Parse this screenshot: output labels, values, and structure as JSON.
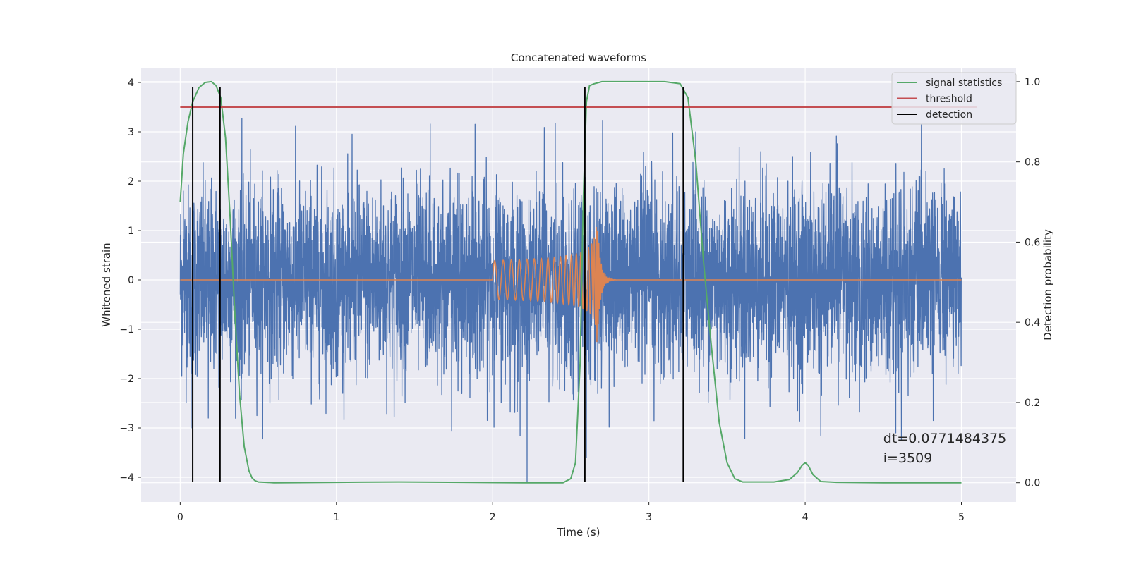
{
  "chart_data": {
    "type": "line",
    "title": "Concatenated waveforms",
    "xlabel": "Time (s)",
    "ylabel": "Whitened strain",
    "y2label": "Detection probability",
    "xlim": [
      -0.25,
      5.35
    ],
    "ylim": [
      -4.5,
      4.3
    ],
    "y2lim": [
      -0.048,
      1.035
    ],
    "xticks": [
      0,
      1,
      2,
      3,
      4,
      5
    ],
    "yticks": [
      -4,
      -3,
      -2,
      -1,
      0,
      1,
      2,
      3,
      4
    ],
    "y2ticks": [
      0.0,
      0.2,
      0.4,
      0.6,
      0.8,
      1.0
    ],
    "grid": true,
    "legend_position": "top-right",
    "legend": [
      "signal statistics",
      "threshold",
      "detection"
    ],
    "series": [
      {
        "name": "",
        "axis": "left",
        "color": "#4c72b0",
        "kind": "noise",
        "x_range": [
          0,
          5
        ],
        "typical_amplitude": 1.0,
        "spikes": [
          [
            0.02,
            1.8
          ],
          [
            0.07,
            -3.0
          ],
          [
            0.18,
            -2.8
          ],
          [
            0.25,
            -3.2
          ],
          [
            1.1,
            3.75
          ],
          [
            1.6,
            3.9
          ],
          [
            2.22,
            -4.1
          ],
          [
            2.6,
            -3.6
          ],
          [
            3.3,
            3.5
          ],
          [
            4.2,
            3.6
          ],
          [
            4.1,
            -3.15
          ],
          [
            4.58,
            -3.1
          ],
          [
            4.82,
            -2.85
          ]
        ]
      },
      {
        "name": "",
        "axis": "left",
        "color": "#dd8452",
        "kind": "chirp",
        "x_range": [
          0,
          5
        ],
        "chirp_start": 2.0,
        "merger": 2.67,
        "peak_amplitude": 1.2,
        "trough_min": -1.3
      },
      {
        "name": "signal statistics",
        "axis": "right",
        "color": "#55a868",
        "x": [
          0,
          0.02,
          0.05,
          0.08,
          0.12,
          0.16,
          0.2,
          0.23,
          0.26,
          0.29,
          0.32,
          0.35,
          0.38,
          0.41,
          0.44,
          0.46,
          0.48,
          0.5,
          0.55,
          0.6,
          1.0,
          1.4,
          1.8,
          2.2,
          2.45,
          2.5,
          2.53,
          2.56,
          2.58,
          2.6,
          2.62,
          2.65,
          2.7,
          3.0,
          3.1,
          3.2,
          3.25,
          3.3,
          3.35,
          3.4,
          3.45,
          3.5,
          3.55,
          3.6,
          3.8,
          3.9,
          3.95,
          3.98,
          4.0,
          4.02,
          4.05,
          4.1,
          4.2,
          4.5,
          5.0
        ],
        "y": [
          0.7,
          0.82,
          0.9,
          0.95,
          0.985,
          0.998,
          1.0,
          0.99,
          0.96,
          0.86,
          0.66,
          0.42,
          0.22,
          0.09,
          0.03,
          0.012,
          0.005,
          0.002,
          0.001,
          0.0,
          0.001,
          0.002,
          0.001,
          0.0,
          0.0,
          0.01,
          0.05,
          0.3,
          0.7,
          0.95,
          0.99,
          0.995,
          1.0,
          1.0,
          1.0,
          0.995,
          0.96,
          0.8,
          0.55,
          0.34,
          0.15,
          0.05,
          0.01,
          0.002,
          0.002,
          0.008,
          0.025,
          0.043,
          0.05,
          0.043,
          0.02,
          0.003,
          0.001,
          0.0,
          0.0
        ]
      },
      {
        "name": "threshold",
        "axis": "left",
        "color": "#c44e52",
        "x": [
          0,
          5.1
        ],
        "y": [
          3.5,
          3.5
        ]
      }
    ],
    "detections": {
      "name": "detection",
      "color": "#000000",
      "x": [
        0.08,
        0.255,
        2.59,
        3.22
      ],
      "y_range": [
        -4.1,
        3.9
      ]
    },
    "annotations": [
      {
        "text": "dt=0.0771484375",
        "x": 4.5,
        "y": -3.3
      },
      {
        "text": " i=3509",
        "x": 4.5,
        "y": -3.7
      }
    ]
  }
}
